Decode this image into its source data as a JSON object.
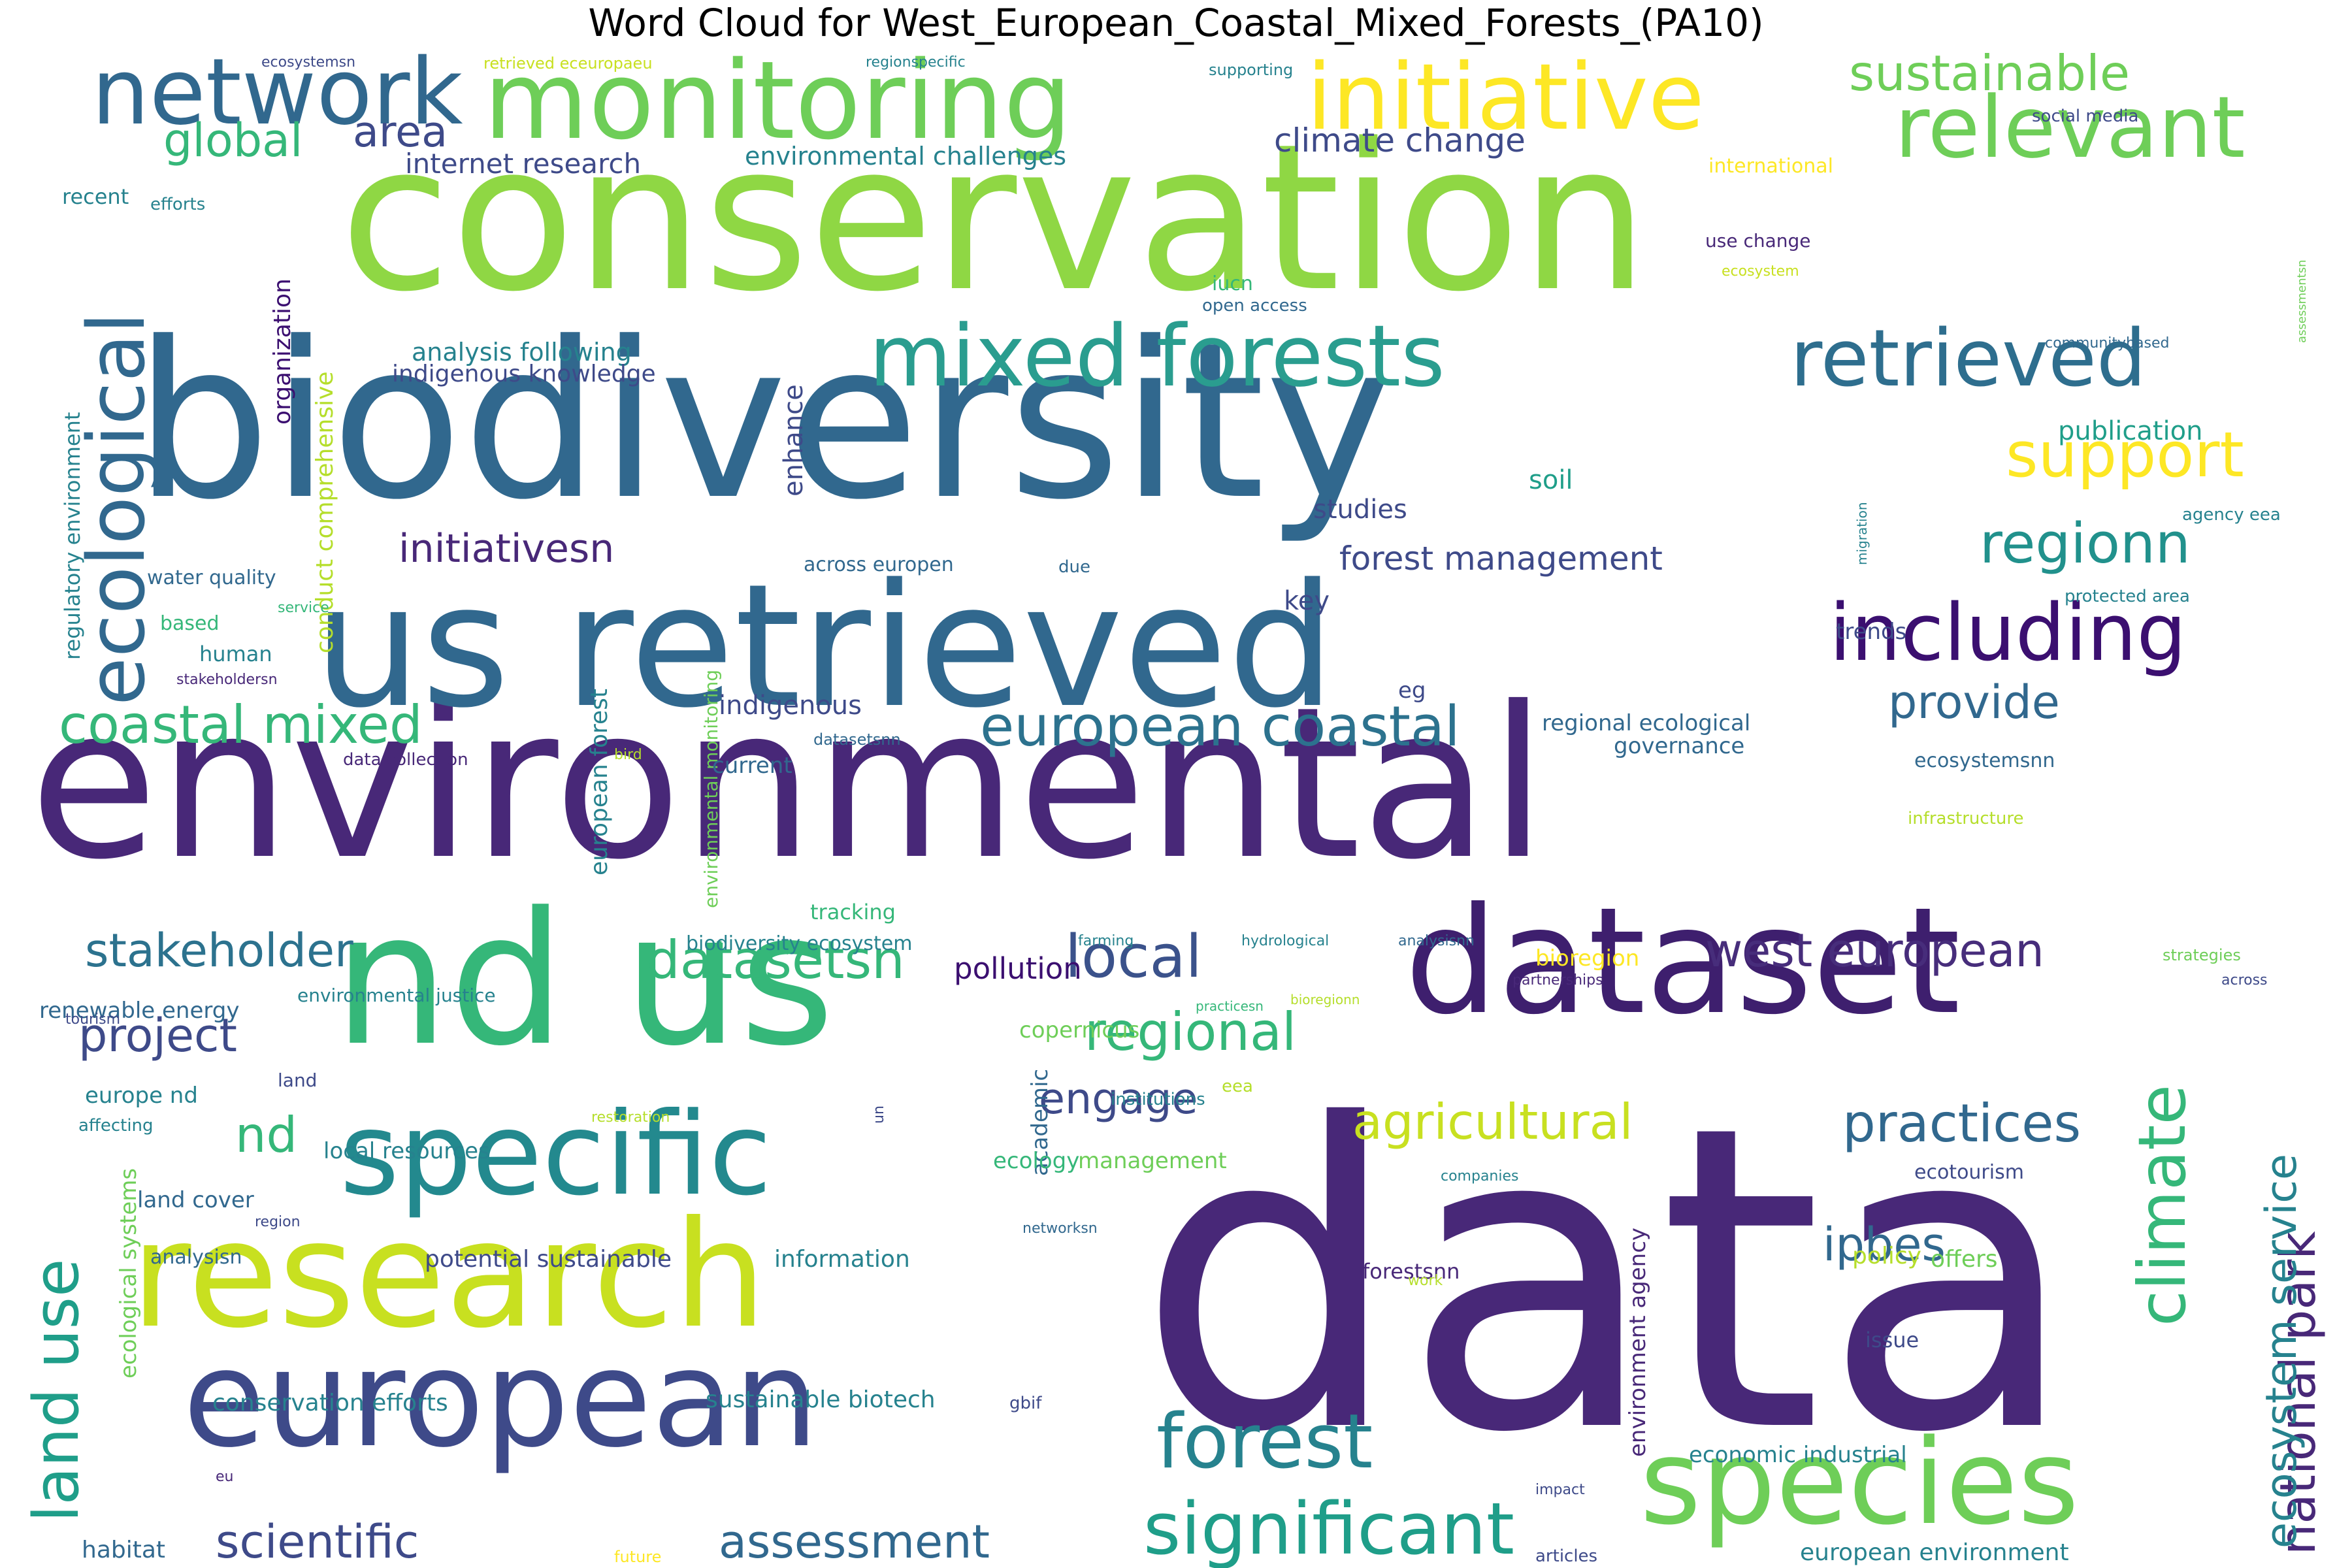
{
  "title": "Word Cloud for West_European_Coastal_Mixed_Forests_(PA10)",
  "palette": [
    "#440154",
    "#482878",
    "#3e4a89",
    "#31688e",
    "#26828e",
    "#1f9e89",
    "#35b779",
    "#6ece58",
    "#b5de2b",
    "#fde725"
  ],
  "words": [
    {
      "text": "data",
      "color": "#482878"
    },
    {
      "text": "environmental",
      "color": "#482878"
    },
    {
      "text": "biodiversity",
      "color": "#31688e"
    },
    {
      "text": "conservation",
      "color": "#8fd744"
    },
    {
      "text": "us retrieved",
      "color": "#31688e"
    },
    {
      "text": "nd us",
      "color": "#35b779"
    },
    {
      "text": "dataset",
      "color": "#3e1f6e"
    },
    {
      "text": "research",
      "color": "#c8e020"
    },
    {
      "text": "european",
      "color": "#3e4a89"
    },
    {
      "text": "species",
      "color": "#6ece58"
    },
    {
      "text": "monitoring",
      "color": "#6ece58"
    },
    {
      "text": "specific",
      "color": "#23898e"
    },
    {
      "text": "network",
      "color": "#31688e"
    },
    {
      "text": "mixed forests",
      "color": "#2a9d8f"
    },
    {
      "text": "initiative",
      "color": "#fde725"
    },
    {
      "text": "relevant",
      "color": "#6ece58"
    },
    {
      "text": "retrieved",
      "color": "#2e6e8e"
    },
    {
      "text": "including",
      "color": "#3b0f70"
    },
    {
      "text": "ecological",
      "color": "#31688e"
    },
    {
      "text": "forest",
      "color": "#26828e"
    },
    {
      "text": "significant",
      "color": "#1f9e89"
    },
    {
      "text": "land use",
      "color": "#1f9e89"
    },
    {
      "text": "climate",
      "color": "#35b779"
    },
    {
      "text": "european coastal",
      "color": "#2c728e"
    },
    {
      "text": "coastal mixed",
      "color": "#35b779"
    },
    {
      "text": "support",
      "color": "#fde725"
    },
    {
      "text": "regionn",
      "color": "#21918c"
    },
    {
      "text": "local",
      "color": "#3b528b"
    },
    {
      "text": "datasetsn",
      "color": "#35b779"
    },
    {
      "text": "west european",
      "color": "#472d7b"
    },
    {
      "text": "national park",
      "color": "#482878"
    },
    {
      "text": "ecosystem service",
      "color": "#26828e"
    },
    {
      "text": "stakeholder",
      "color": "#2c728e"
    },
    {
      "text": "regional",
      "color": "#35b779"
    },
    {
      "text": "practices",
      "color": "#31688e"
    },
    {
      "text": "agricultural",
      "color": "#c8e020"
    },
    {
      "text": "project",
      "color": "#3e4a89"
    },
    {
      "text": "scientific",
      "color": "#3e4a89"
    },
    {
      "text": "assessment",
      "color": "#31688e"
    },
    {
      "text": "provide",
      "color": "#31688e"
    },
    {
      "text": "initiativesn",
      "color": "#482878"
    },
    {
      "text": "sustainable",
      "color": "#6ece58"
    },
    {
      "text": "global",
      "color": "#35b779"
    },
    {
      "text": "area",
      "color": "#3e4a89"
    },
    {
      "text": "engage",
      "color": "#3e4a89"
    },
    {
      "text": "nd",
      "color": "#35b779"
    },
    {
      "text": "ipbes",
      "color": "#31688e"
    },
    {
      "text": "climate change",
      "color": "#3e4a89"
    },
    {
      "text": "forest management",
      "color": "#3e4a89"
    },
    {
      "text": "indigenous",
      "color": "#3e4a89"
    },
    {
      "text": "pollution",
      "color": "#3b0f70"
    },
    {
      "text": "internet research",
      "color": "#3e4a89"
    },
    {
      "text": "environmental challenges",
      "color": "#26828e"
    },
    {
      "text": "analysis following",
      "color": "#26828e"
    },
    {
      "text": "indigenous knowledge",
      "color": "#3e4a89"
    },
    {
      "text": "organization",
      "color": "#3b0f70"
    },
    {
      "text": "conduct comprehensive",
      "color": "#b5de2b"
    },
    {
      "text": "regulatory environment",
      "color": "#26828e"
    },
    {
      "text": "european forest",
      "color": "#26828e"
    },
    {
      "text": "environmental monitoring",
      "color": "#6ece58"
    },
    {
      "text": "enhance",
      "color": "#3e4a89"
    },
    {
      "text": "studies",
      "color": "#3e4a89"
    },
    {
      "text": "soil",
      "color": "#1f9e89"
    },
    {
      "text": "publication",
      "color": "#1f9e89"
    },
    {
      "text": "key",
      "color": "#3e4a89"
    },
    {
      "text": "eg",
      "color": "#3e4a89"
    },
    {
      "text": "trends",
      "color": "#3e4a89"
    },
    {
      "text": "current",
      "color": "#31688e"
    },
    {
      "text": "across europen",
      "color": "#31688e"
    },
    {
      "text": "due",
      "color": "#31688e"
    },
    {
      "text": "water quality",
      "color": "#31688e"
    },
    {
      "text": "based",
      "color": "#35b779"
    },
    {
      "text": "human",
      "color": "#26828e"
    },
    {
      "text": "stakeholdersn",
      "color": "#482878"
    },
    {
      "text": "service",
      "color": "#35b779"
    },
    {
      "text": "recent",
      "color": "#26828e"
    },
    {
      "text": "efforts",
      "color": "#26828e"
    },
    {
      "text": "tracking",
      "color": "#35b779"
    },
    {
      "text": "biodiversity ecosystem",
      "color": "#26828e"
    },
    {
      "text": "regional ecological",
      "color": "#31688e"
    },
    {
      "text": "governance",
      "color": "#31688e"
    },
    {
      "text": "ecosystemsnn",
      "color": "#31688e"
    },
    {
      "text": "infrastructure",
      "color": "#b5de2b"
    },
    {
      "text": "datasetsnn",
      "color": "#31688e"
    },
    {
      "text": "data collection",
      "color": "#482878"
    },
    {
      "text": "bird",
      "color": "#b5de2b"
    },
    {
      "text": "renewable energy",
      "color": "#31688e"
    },
    {
      "text": "environmental justice",
      "color": "#26828e"
    },
    {
      "text": "tourism",
      "color": "#3e4a89"
    },
    {
      "text": "land",
      "color": "#3e4a89"
    },
    {
      "text": "europe nd",
      "color": "#26828e"
    },
    {
      "text": "affecting",
      "color": "#26828e"
    },
    {
      "text": "local resources",
      "color": "#26828e"
    },
    {
      "text": "land cover",
      "color": "#31688e"
    },
    {
      "text": "region",
      "color": "#3e4a89"
    },
    {
      "text": "analysisn",
      "color": "#31688e"
    },
    {
      "text": "ecological systems",
      "color": "#6ece58"
    },
    {
      "text": "potential sustainable",
      "color": "#3e4a89"
    },
    {
      "text": "information",
      "color": "#26828e"
    },
    {
      "text": "conservation efforts",
      "color": "#26828e"
    },
    {
      "text": "sustainable biotech",
      "color": "#26828e"
    },
    {
      "text": "habitat",
      "color": "#31688e"
    },
    {
      "text": "eu",
      "color": "#482878"
    },
    {
      "text": "future",
      "color": "#fde725"
    },
    {
      "text": "copernicus",
      "color": "#6ece58"
    },
    {
      "text": "academic",
      "color": "#31688e"
    },
    {
      "text": "management",
      "color": "#6ece58"
    },
    {
      "text": "ecology",
      "color": "#35b779"
    },
    {
      "text": "networksn",
      "color": "#31688e"
    },
    {
      "text": "institutions",
      "color": "#26828e"
    },
    {
      "text": "eea",
      "color": "#b5de2b"
    },
    {
      "text": "restoration",
      "color": "#b5de2b"
    },
    {
      "text": "un",
      "color": "#3e4a89"
    },
    {
      "text": "farming",
      "color": "#26828e"
    },
    {
      "text": "hydrological",
      "color": "#26828e"
    },
    {
      "text": "analysisnn",
      "color": "#31688e"
    },
    {
      "text": "bioregion",
      "color": "#fde725"
    },
    {
      "text": "bioregionn",
      "color": "#b5de2b"
    },
    {
      "text": "practicesn",
      "color": "#35b779"
    },
    {
      "text": "partnerships",
      "color": "#482878"
    },
    {
      "text": "environment agency",
      "color": "#482878"
    },
    {
      "text": "companies",
      "color": "#26828e"
    },
    {
      "text": "forestsnn",
      "color": "#482878"
    },
    {
      "text": "work",
      "color": "#b5de2b"
    },
    {
      "text": "policy",
      "color": "#b5de2b"
    },
    {
      "text": "offers",
      "color": "#6ece58"
    },
    {
      "text": "issue",
      "color": "#3e4a89"
    },
    {
      "text": "ecotourism",
      "color": "#3e4a89"
    },
    {
      "text": "strategies",
      "color": "#6ece58"
    },
    {
      "text": "across",
      "color": "#3e4a89"
    },
    {
      "text": "economic industrial",
      "color": "#26828e"
    },
    {
      "text": "impact",
      "color": "#3e4a89"
    },
    {
      "text": "articles",
      "color": "#3e4a89"
    },
    {
      "text": "european environment",
      "color": "#26828e"
    },
    {
      "text": "gbif",
      "color": "#3e4a89"
    },
    {
      "text": "ecosystemsn",
      "color": "#3e4a89"
    },
    {
      "text": "retrieved eceuropaeu",
      "color": "#c8e020"
    },
    {
      "text": "regionspecific",
      "color": "#26828e"
    },
    {
      "text": "supporting",
      "color": "#26828e"
    },
    {
      "text": "social media",
      "color": "#3e4a89"
    },
    {
      "text": "international",
      "color": "#fde725"
    },
    {
      "text": "use change",
      "color": "#482878"
    },
    {
      "text": "ecosystem",
      "color": "#c8e020"
    },
    {
      "text": "iucn",
      "color": "#35b779"
    },
    {
      "text": "open access",
      "color": "#31688e"
    },
    {
      "text": "communitybased",
      "color": "#31688e"
    },
    {
      "text": "assessmentsn",
      "color": "#6ece58"
    },
    {
      "text": "agency eea",
      "color": "#26828e"
    },
    {
      "text": "migration",
      "color": "#26828e"
    },
    {
      "text": "protected area",
      "color": "#26828e"
    }
  ]
}
